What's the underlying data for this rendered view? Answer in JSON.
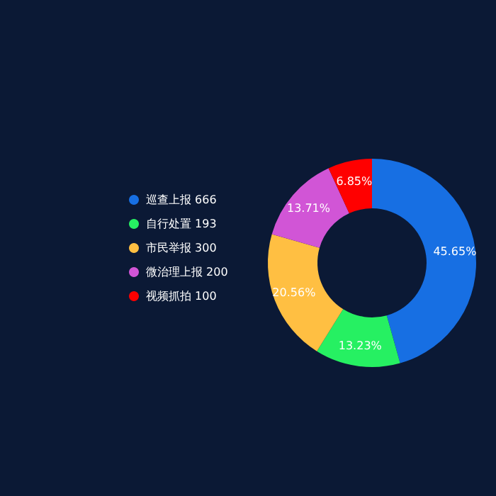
{
  "chart_data": {
    "type": "donut",
    "categories": [
      "巡查上报 666",
      "自行处置 193",
      "市民举报 300",
      "微治理上报 200",
      "视频抓拍 100"
    ],
    "values": [
      45.65,
      13.23,
      20.56,
      13.71,
      6.85
    ],
    "value_labels": [
      "45.65%",
      "13.23%",
      "20.56%",
      "13.71%",
      "6.85%"
    ],
    "colors": [
      "#176fe3",
      "#26f062",
      "#ffbf42",
      "#d155d6",
      "#ff0000"
    ],
    "legend": "left"
  }
}
